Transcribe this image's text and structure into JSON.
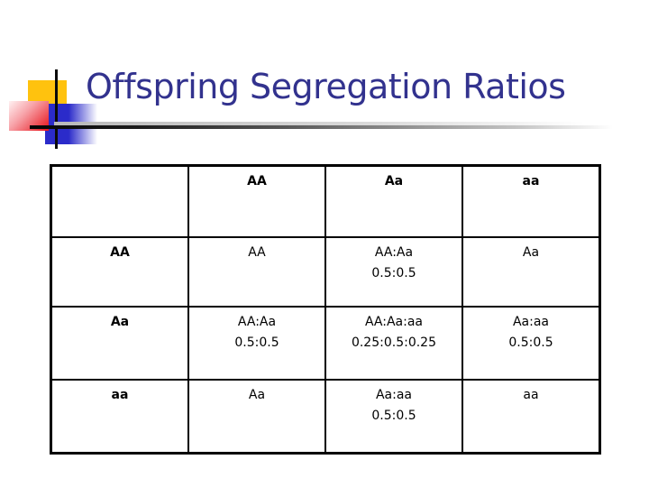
{
  "slide": {
    "title": "Offspring Segregation Ratios"
  },
  "decor": {
    "title_text_color": "#32328E",
    "yellow_square_color": "#FFC20E",
    "red_square_color": "#E81018",
    "blue_square_color": "#2B2BCA",
    "table_border_color": "#000000",
    "table_text_color": "#000000"
  },
  "table": {
    "column_headers": [
      "AA",
      "Aa",
      "aa"
    ],
    "rows": [
      {
        "header": "AA",
        "cells": [
          {
            "genotypes": "AA",
            "ratios": ""
          },
          {
            "genotypes": "AA:Aa",
            "ratios": "0.5:0.5"
          },
          {
            "genotypes": "Aa",
            "ratios": ""
          }
        ]
      },
      {
        "header": "Aa",
        "cells": [
          {
            "genotypes": "AA:Aa",
            "ratios": "0.5:0.5"
          },
          {
            "genotypes": "AA:Aa:aa",
            "ratios": "0.25:0.5:0.25"
          },
          {
            "genotypes": "Aa:aa",
            "ratios": "0.5:0.5"
          }
        ]
      },
      {
        "header": "aa",
        "cells": [
          {
            "genotypes": "Aa",
            "ratios": ""
          },
          {
            "genotypes": "Aa:aa",
            "ratios": "0.5:0.5"
          },
          {
            "genotypes": "aa",
            "ratios": ""
          }
        ]
      }
    ]
  }
}
